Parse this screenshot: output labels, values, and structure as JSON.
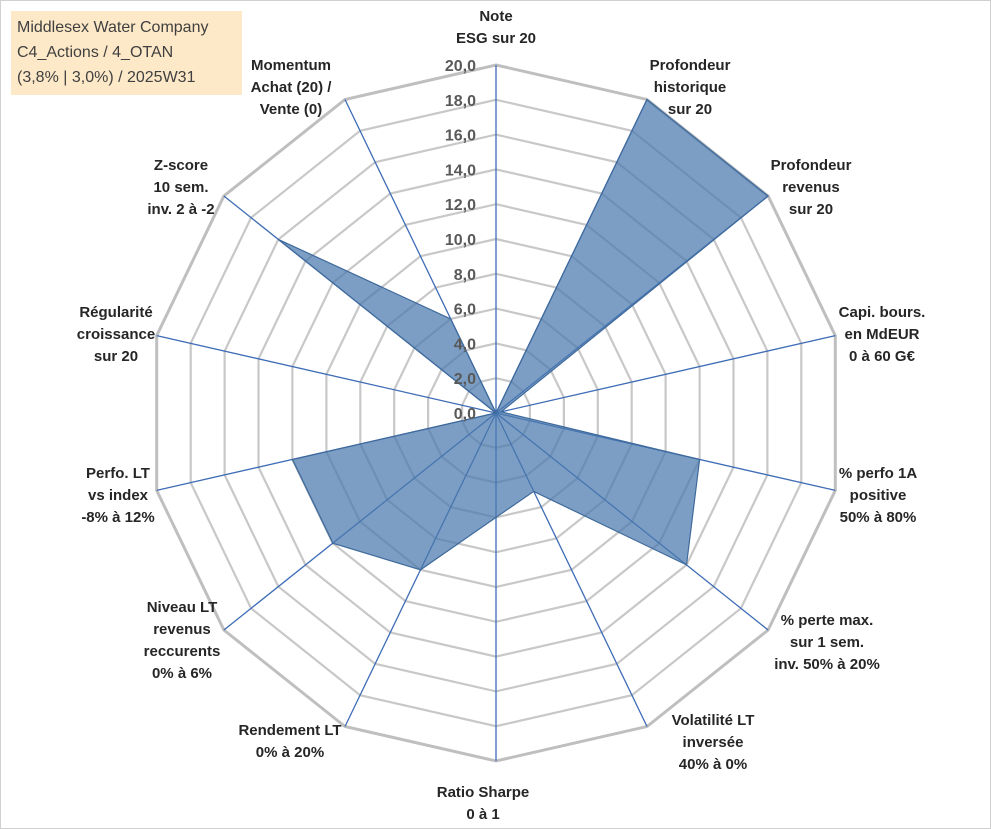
{
  "title": {
    "lines": [
      "Middlesex Water Company",
      "C4_Actions / 4_OTAN",
      "(3,8% | 3,0%) / 2025W31"
    ]
  },
  "chart_data": {
    "type": "radar",
    "rmin": 0,
    "rmax": 20,
    "tick_step": 2,
    "tick_labels": [
      "0,0",
      "2,0",
      "4,0",
      "6,0",
      "8,0",
      "10,0",
      "12,0",
      "14,0",
      "16,0",
      "18,0",
      "20,0"
    ],
    "gridlines": true,
    "series_color": "#4a78ad",
    "axes": [
      {
        "label": [
          "Note",
          "ESG sur 20"
        ],
        "value": 0
      },
      {
        "label": [
          "Profondeur",
          "historique",
          "sur 20"
        ],
        "value": 20
      },
      {
        "label": [
          "Profondeur",
          "revenus",
          "sur 20"
        ],
        "value": 20
      },
      {
        "label": [
          "Capi. bours.",
          "en MdEUR",
          "0 à 60 G€"
        ],
        "value": 0.3
      },
      {
        "label": [
          "% perfo 1A",
          "positive",
          "50% à 80%"
        ],
        "value": 12
      },
      {
        "label": [
          "% perte max.",
          "sur 1 sem.",
          "inv. 50% à 20%"
        ],
        "value": 14
      },
      {
        "label": [
          "Volatilité LT",
          "inversée",
          "40% à 0%"
        ],
        "value": 5
      },
      {
        "label": [
          "Ratio Sharpe",
          "0 à 1"
        ],
        "value": 6
      },
      {
        "label": [
          "Rendement LT",
          "0% à 20%"
        ],
        "value": 10
      },
      {
        "label": [
          "Niveau LT",
          "revenus",
          "reccurents",
          "0% à 6%"
        ],
        "value": 12
      },
      {
        "label": [
          "Perfo. LT",
          "vs index",
          "-8% à 12%"
        ],
        "value": 12
      },
      {
        "label": [
          "Régularité",
          "croissance",
          "sur 20"
        ],
        "value": 0
      },
      {
        "label": [
          "Z-score",
          "10 sem.",
          "inv. 2 à -2"
        ],
        "value": 16
      },
      {
        "label": [
          "Momentum",
          "Achat (20) /",
          "Vente (0)"
        ],
        "value": 6
      }
    ]
  }
}
